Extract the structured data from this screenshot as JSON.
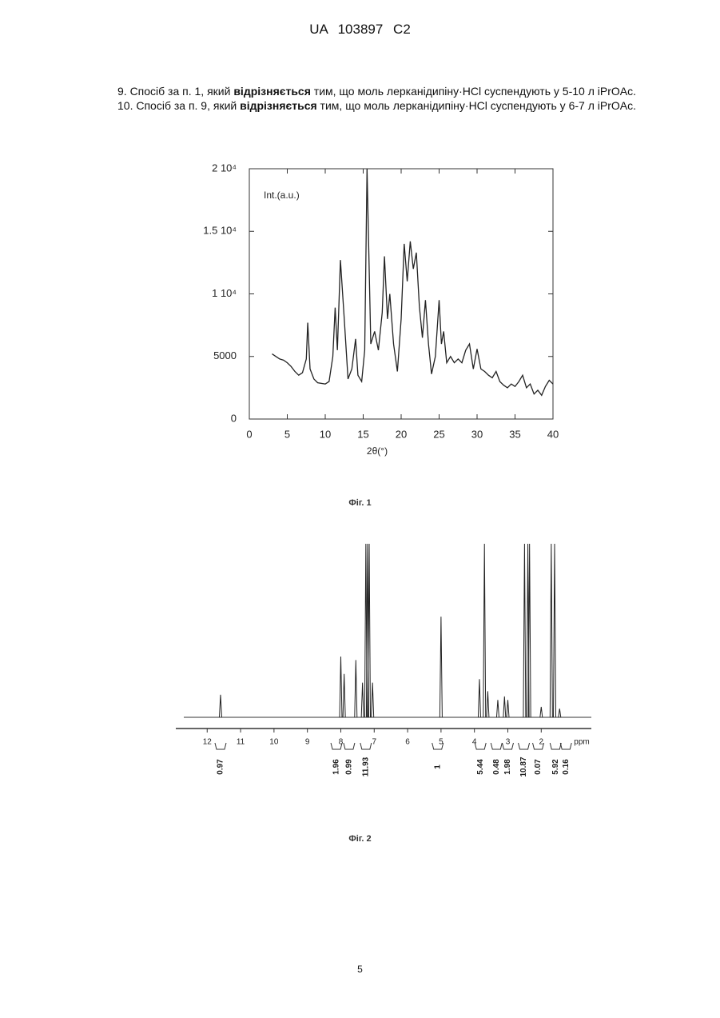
{
  "header": {
    "title": "UA 103897 C2"
  },
  "claims": [
    [
      "9. Спосіб за п. 1, який ",
      "відрізняється",
      " тим, що моль лерканідипіну·HCl суспендують у 5-10 л iPrOAc."
    ],
    [
      "10. Спосіб за п. 9, який ",
      "відрізняється",
      " тим, що моль лерканідипіну·HCl суспендують у 6-7 л iPrOAc."
    ]
  ],
  "chart_data": [
    {
      "type": "line",
      "caption": "Фіг. 1",
      "y_label": "Int.(a.u.)",
      "x_label": "2θ(°)",
      "color": "#222222",
      "xlim": [
        0,
        40
      ],
      "xticks": [
        0,
        5,
        10,
        15,
        20,
        25,
        30,
        35,
        40
      ],
      "ylim": [
        0,
        20000
      ],
      "yticks": [
        0,
        5000,
        {
          "value": 10000,
          "label": "1 10⁴"
        },
        {
          "value": 15000,
          "label": "1.5 10⁴"
        },
        {
          "value": 20000,
          "label": "2 10⁴"
        }
      ],
      "x": [
        3,
        3.5,
        4,
        4.5,
        5,
        5.5,
        6,
        6.5,
        7,
        7.5,
        7.7,
        8,
        8.5,
        9,
        10,
        10.5,
        11,
        11.3,
        11.6,
        12,
        12.5,
        13,
        13.5,
        14,
        14.3,
        14.8,
        15.2,
        15.5,
        16,
        16.5,
        17,
        17.5,
        17.8,
        18.2,
        18.5,
        19,
        19.5,
        20,
        20.4,
        20.8,
        21.2,
        21.6,
        22,
        22.4,
        22.8,
        23.2,
        23.6,
        24,
        24.5,
        25,
        25.3,
        25.6,
        26,
        26.5,
        27,
        27.5,
        28,
        28.5,
        29,
        29.5,
        30,
        30.5,
        31,
        31.5,
        32,
        32.5,
        33,
        33.5,
        34,
        34.5,
        35,
        35.5,
        36,
        36.5,
        37,
        37.5,
        38,
        38.5,
        39,
        39.5,
        40
      ],
      "values": [
        5200,
        5000,
        4800,
        4700,
        4500,
        4200,
        3800,
        3500,
        3700,
        4800,
        7700,
        4000,
        3200,
        2900,
        2800,
        3000,
        5000,
        8900,
        5500,
        12700,
        8000,
        3200,
        4000,
        6400,
        3500,
        3000,
        5500,
        20000,
        6000,
        7000,
        5500,
        8500,
        13000,
        8000,
        10000,
        6000,
        3800,
        8000,
        14000,
        11000,
        14200,
        12000,
        13300,
        9000,
        6500,
        9500,
        6000,
        3600,
        5000,
        9500,
        6000,
        7000,
        4500,
        5000,
        4500,
        4800,
        4500,
        5500,
        6000,
        4000,
        5600,
        4000,
        3800,
        3500,
        3300,
        3800,
        3000,
        2700,
        2500,
        2800,
        2600,
        3000,
        3500,
        2500,
        2800,
        2000,
        2300,
        1900,
        2600,
        3100,
        2800
      ]
    },
    {
      "type": "stick",
      "caption": "Фіг. 2",
      "x_unit": "ppm",
      "color": "#222222",
      "xlim": [
        12.7,
        0.5
      ],
      "xticks": [
        12,
        11,
        10,
        9,
        8,
        7,
        6,
        5,
        4,
        3,
        2
      ],
      "ylim": [
        0,
        100
      ],
      "x": [
        11.6,
        8.0,
        7.9,
        7.55,
        7.35,
        7.25,
        7.2,
        7.15,
        7.05,
        5.0,
        3.85,
        3.7,
        3.6,
        3.3,
        3.1,
        3.0,
        2.5,
        2.4,
        2.35,
        2.0,
        1.7,
        1.6,
        1.45
      ],
      "values": [
        13,
        35,
        25,
        33,
        20,
        100,
        100,
        100,
        20,
        58,
        22,
        100,
        15,
        10,
        12,
        10,
        100,
        100,
        100,
        6,
        100,
        100,
        5
      ],
      "integrals": {
        "x": [
          11.6,
          8.13,
          7.75,
          7.25,
          5.1,
          3.82,
          3.34,
          3.0,
          2.52,
          2.09,
          1.57,
          1.26
        ],
        "values": [
          0.97,
          1.96,
          0.99,
          11.93,
          1.0,
          5.44,
          0.48,
          1.98,
          10.87,
          0.07,
          5.92,
          0.16
        ]
      }
    }
  ],
  "footer": {
    "page_number": "5"
  }
}
